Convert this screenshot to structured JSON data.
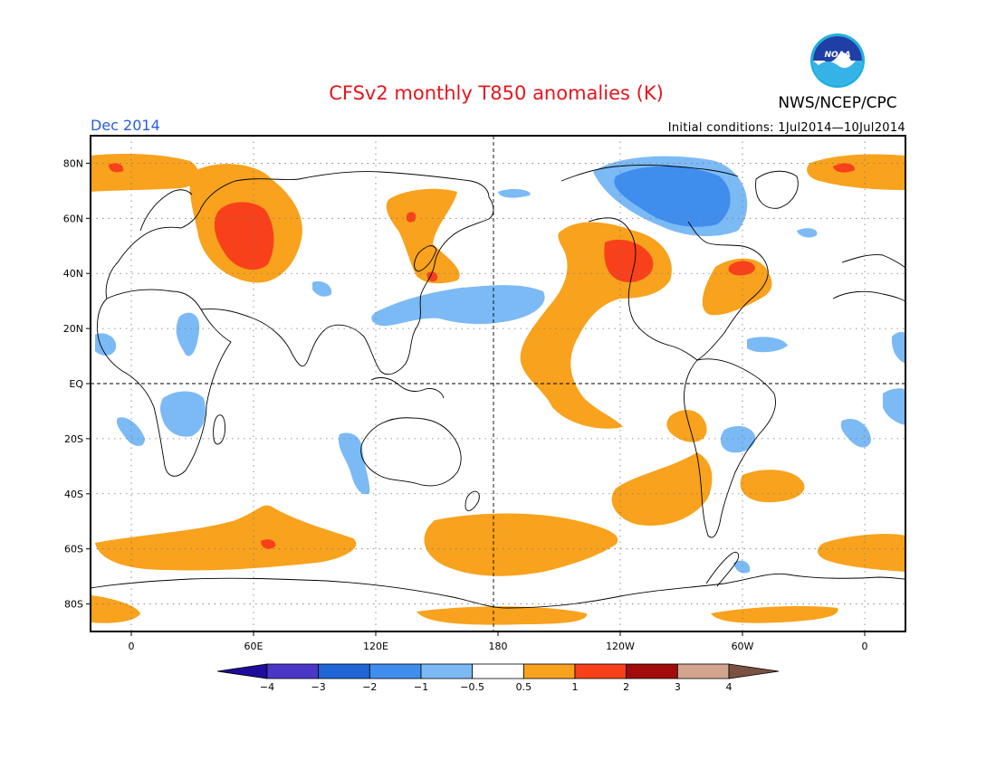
{
  "header": {
    "title": "CFSv2 monthly T850 anomalies (K)",
    "agency": "NWS/NCEP/CPC",
    "logo_text": "NOAA",
    "valid_month": "Dec 2014",
    "initial_conditions": "Initial conditions: 1Jul2014—10Jul2014"
  },
  "map": {
    "projection": "cylindrical equidistant",
    "lon_range": [
      -20,
      380
    ],
    "lat_range": [
      -90,
      90
    ],
    "gridlines": "dotted",
    "x_ticks": [
      {
        "lon": 0,
        "label": "0"
      },
      {
        "lon": 60,
        "label": "60E"
      },
      {
        "lon": 120,
        "label": "120E"
      },
      {
        "lon": 180,
        "label": "180"
      },
      {
        "lon": 240,
        "label": "120W"
      },
      {
        "lon": 300,
        "label": "60W"
      },
      {
        "lon": 360,
        "label": "0"
      }
    ],
    "y_ticks": [
      {
        "lat": 80,
        "label": "80N"
      },
      {
        "lat": 60,
        "label": "60N"
      },
      {
        "lat": 40,
        "label": "40N"
      },
      {
        "lat": 20,
        "label": "20N"
      },
      {
        "lat": 0,
        "label": "EQ"
      },
      {
        "lat": -20,
        "label": "20S"
      },
      {
        "lat": -40,
        "label": "40S"
      },
      {
        "lat": -60,
        "label": "60S"
      },
      {
        "lat": -80,
        "label": "80S"
      }
    ]
  },
  "colorbar": {
    "levels": [
      "-4",
      "-3",
      "-2",
      "-1",
      "-0.5",
      "0.5",
      "1",
      "2",
      "3",
      "4"
    ],
    "colors": [
      "#1e0a9b",
      "#4a37c8",
      "#2065d6",
      "#3f8eee",
      "#7cbaf5",
      "#ffffff",
      "#f8a21d",
      "#f8411a",
      "#a20b0b",
      "#d3a58e",
      "#7b5143"
    ]
  },
  "anomaly_colors": {
    "warm_1": "#f8a21d",
    "warm_2": "#f8411a",
    "cool_1": "#7cbaf5",
    "cool_2": "#3f8eee"
  }
}
